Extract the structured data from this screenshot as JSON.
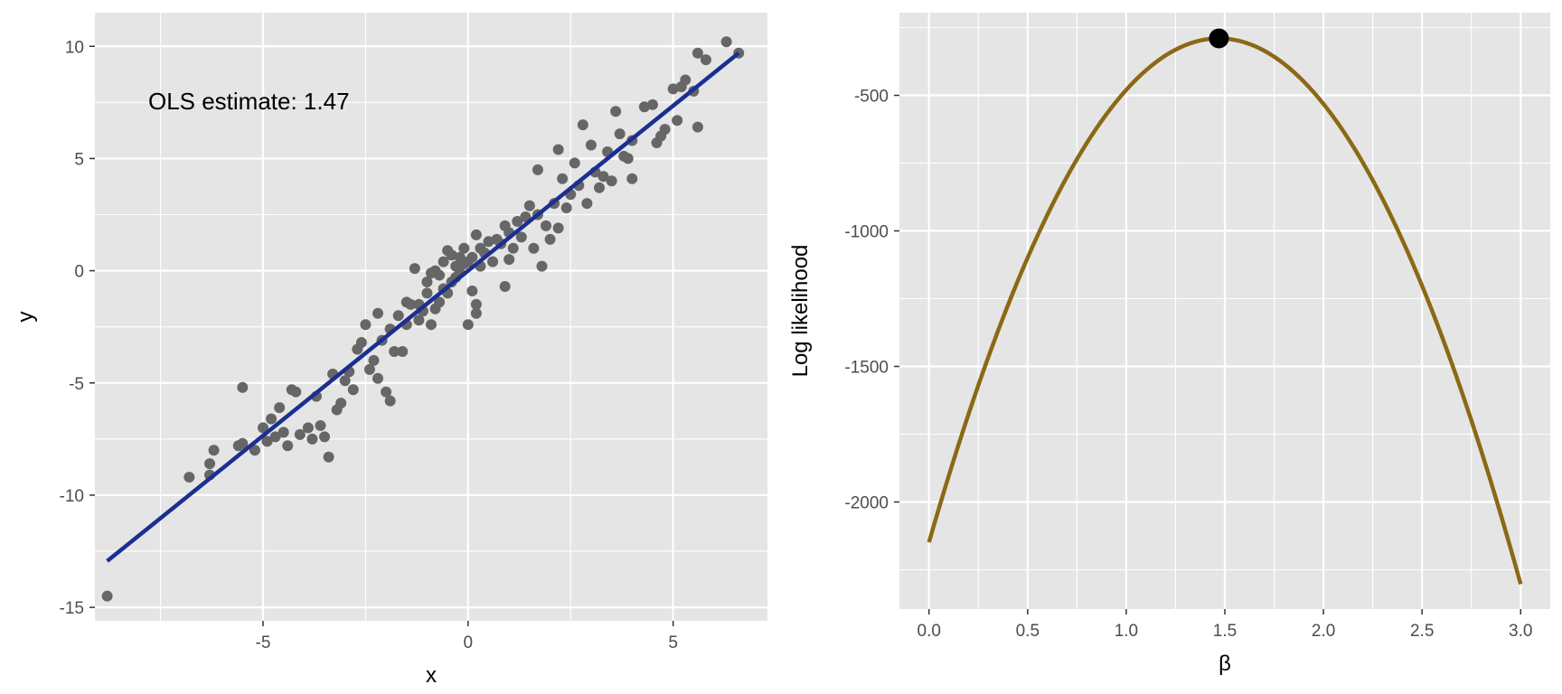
{
  "chart_data": [
    {
      "type": "scatter",
      "xlabel": "x",
      "ylabel": "y",
      "xlim": [
        -9.1,
        7.3
      ],
      "ylim": [
        -15.6,
        11.5
      ],
      "x_ticks": [
        -5,
        0,
        5
      ],
      "x_tick_labels": [
        "-5",
        "0",
        "5"
      ],
      "y_ticks": [
        -15,
        -10,
        -5,
        0,
        5,
        10
      ],
      "y_tick_labels": [
        "-15",
        "-10",
        "-5",
        "0",
        "5",
        "10"
      ],
      "annotation": "OLS estimate: 1.47",
      "grid": true,
      "points": [
        [
          -8.8,
          -14.5
        ],
        [
          -6.8,
          -9.2
        ],
        [
          -6.3,
          -9.1
        ],
        [
          -6.3,
          -8.6
        ],
        [
          -6.2,
          -8.0
        ],
        [
          -5.6,
          -7.8
        ],
        [
          -5.5,
          -7.7
        ],
        [
          -5.5,
          -5.2
        ],
        [
          -5.2,
          -8.0
        ],
        [
          -5.0,
          -7.0
        ],
        [
          -4.9,
          -7.6
        ],
        [
          -4.8,
          -6.6
        ],
        [
          -4.7,
          -7.4
        ],
        [
          -4.6,
          -6.1
        ],
        [
          -4.5,
          -7.2
        ],
        [
          -4.4,
          -7.8
        ],
        [
          -4.3,
          -5.3
        ],
        [
          -4.2,
          -5.4
        ],
        [
          -4.1,
          -7.3
        ],
        [
          -3.9,
          -7.0
        ],
        [
          -3.8,
          -7.5
        ],
        [
          -3.7,
          -5.6
        ],
        [
          -3.6,
          -6.9
        ],
        [
          -3.5,
          -7.4
        ],
        [
          -3.4,
          -8.3
        ],
        [
          -3.3,
          -4.6
        ],
        [
          -3.2,
          -6.2
        ],
        [
          -3.1,
          -5.9
        ],
        [
          -3.0,
          -4.9
        ],
        [
          -2.9,
          -4.5
        ],
        [
          -2.8,
          -5.3
        ],
        [
          -2.7,
          -3.5
        ],
        [
          -2.6,
          -3.2
        ],
        [
          -2.5,
          -2.4
        ],
        [
          -2.4,
          -4.4
        ],
        [
          -2.3,
          -4.0
        ],
        [
          -2.2,
          -1.9
        ],
        [
          -2.2,
          -4.8
        ],
        [
          -2.1,
          -3.1
        ],
        [
          -2.0,
          -5.4
        ],
        [
          -1.9,
          -5.8
        ],
        [
          -1.9,
          -2.6
        ],
        [
          -1.8,
          -3.6
        ],
        [
          -1.7,
          -2.0
        ],
        [
          -1.6,
          -3.6
        ],
        [
          -1.5,
          -2.4
        ],
        [
          -1.5,
          -1.4
        ],
        [
          -1.4,
          -1.5
        ],
        [
          -1.3,
          0.1
        ],
        [
          -1.2,
          -2.2
        ],
        [
          -1.2,
          -1.5
        ],
        [
          -1.1,
          -1.8
        ],
        [
          -1.0,
          -1.0
        ],
        [
          -1.0,
          -0.5
        ],
        [
          -0.9,
          -2.4
        ],
        [
          -0.9,
          -0.1
        ],
        [
          -0.8,
          -1.7
        ],
        [
          -0.8,
          0.0
        ],
        [
          -0.7,
          -1.4
        ],
        [
          -0.7,
          -0.2
        ],
        [
          -0.6,
          -0.8
        ],
        [
          -0.6,
          0.4
        ],
        [
          -0.5,
          -1.0
        ],
        [
          -0.5,
          0.9
        ],
        [
          -0.4,
          -0.5
        ],
        [
          -0.4,
          0.7
        ],
        [
          -0.3,
          -0.3
        ],
        [
          -0.3,
          0.2
        ],
        [
          -0.2,
          0.6
        ],
        [
          -0.2,
          -0.1
        ],
        [
          -0.1,
          1.0
        ],
        [
          -0.1,
          0.3
        ],
        [
          0.0,
          -2.4
        ],
        [
          0.0,
          0.4
        ],
        [
          0.1,
          -0.9
        ],
        [
          0.1,
          0.6
        ],
        [
          0.2,
          1.6
        ],
        [
          0.2,
          -1.5
        ],
        [
          0.2,
          -1.9
        ],
        [
          0.3,
          0.2
        ],
        [
          0.3,
          1.0
        ],
        [
          0.4,
          0.8
        ],
        [
          0.5,
          1.3
        ],
        [
          0.6,
          0.4
        ],
        [
          0.7,
          1.4
        ],
        [
          0.8,
          1.2
        ],
        [
          0.9,
          2.0
        ],
        [
          0.9,
          -0.7
        ],
        [
          1.0,
          0.5
        ],
        [
          1.0,
          1.7
        ],
        [
          1.1,
          1.0
        ],
        [
          1.2,
          2.2
        ],
        [
          1.3,
          1.5
        ],
        [
          1.4,
          2.4
        ],
        [
          1.5,
          2.9
        ],
        [
          1.6,
          1.0
        ],
        [
          1.7,
          4.5
        ],
        [
          1.7,
          2.5
        ],
        [
          1.8,
          0.2
        ],
        [
          1.9,
          2.0
        ],
        [
          2.0,
          1.4
        ],
        [
          2.1,
          3.0
        ],
        [
          2.2,
          1.9
        ],
        [
          2.2,
          5.4
        ],
        [
          2.3,
          4.1
        ],
        [
          2.4,
          2.8
        ],
        [
          2.5,
          3.4
        ],
        [
          2.6,
          4.8
        ],
        [
          2.7,
          3.8
        ],
        [
          2.8,
          6.5
        ],
        [
          2.9,
          3.0
        ],
        [
          3.0,
          5.6
        ],
        [
          3.1,
          4.4
        ],
        [
          3.2,
          3.7
        ],
        [
          3.3,
          4.2
        ],
        [
          3.4,
          5.3
        ],
        [
          3.5,
          4.0
        ],
        [
          3.6,
          7.1
        ],
        [
          3.7,
          6.1
        ],
        [
          3.8,
          5.1
        ],
        [
          3.9,
          5.0
        ],
        [
          4.0,
          5.8
        ],
        [
          4.0,
          4.1
        ],
        [
          4.3,
          7.3
        ],
        [
          4.5,
          7.4
        ],
        [
          4.6,
          5.7
        ],
        [
          4.7,
          6.0
        ],
        [
          4.8,
          6.3
        ],
        [
          5.0,
          8.1
        ],
        [
          5.1,
          6.7
        ],
        [
          5.2,
          8.2
        ],
        [
          5.3,
          8.5
        ],
        [
          5.5,
          8.0
        ],
        [
          5.6,
          9.7
        ],
        [
          5.6,
          6.4
        ],
        [
          5.8,
          9.4
        ],
        [
          6.3,
          10.2
        ],
        [
          6.6,
          9.7
        ]
      ],
      "regression_line": {
        "slope": 1.47,
        "intercept": 0.0,
        "x_range": [
          -8.8,
          6.6
        ]
      }
    },
    {
      "type": "line",
      "xlabel": "β",
      "ylabel": "Log likelihood",
      "xlim": [
        -0.15,
        3.15
      ],
      "ylim": [
        -2395,
        -195
      ],
      "x_ticks": [
        0.0,
        0.5,
        1.0,
        1.5,
        2.0,
        2.5,
        3.0
      ],
      "x_tick_labels": [
        "0.0",
        "0.5",
        "1.0",
        "1.5",
        "2.0",
        "2.5",
        "3.0"
      ],
      "y_ticks": [
        -2000,
        -1500,
        -1000,
        -500
      ],
      "y_tick_labels": [
        "-2000",
        "-1500",
        "-1000",
        "-500"
      ],
      "grid": true,
      "curve": {
        "form": "quadratic",
        "x_range": [
          0.0,
          3.0
        ],
        "peak_x": 1.47,
        "peak_y": -290,
        "curvature": 860
      },
      "highlight_point": {
        "x": 1.47,
        "y": -290
      },
      "line_color": "#8b6914"
    }
  ],
  "colors": {
    "panel_bg": "#e5e5e5",
    "grid": "#ffffff",
    "point": "#666666",
    "ols_line": "#1a2f91",
    "curve": "#8b6914",
    "max_point": "#000000",
    "tick_text": "#4d4d4d"
  }
}
